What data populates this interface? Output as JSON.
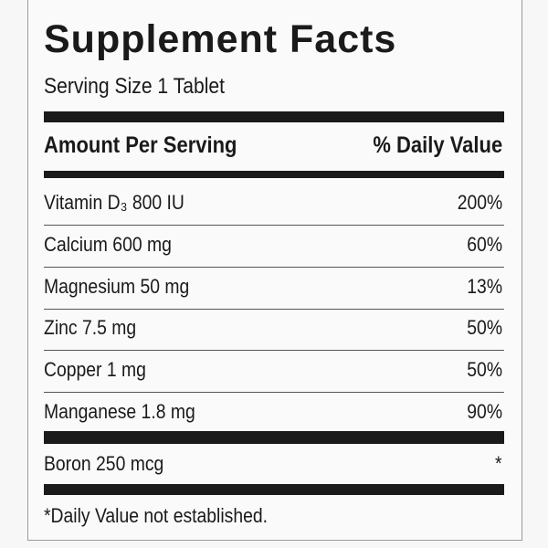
{
  "header": {
    "title": "Supplement Facts",
    "serving_size": "Serving Size 1 Tablet"
  },
  "table": {
    "columns": [
      "Amount Per Serving",
      "% Daily Value"
    ],
    "rows": [
      [
        "Vitamin D₃ 800 IU",
        "200%"
      ],
      [
        "Calcium 600 mg",
        "60%"
      ],
      [
        "Magnesium 50 mg",
        "13%"
      ],
      [
        "Zinc 7.5 mg",
        "50%"
      ],
      [
        "Copper 1 mg",
        "50%"
      ],
      [
        "Manganese 1.8 mg",
        "90%"
      ]
    ],
    "extra_rows": [
      [
        "Boron 250 mcg",
        "*"
      ]
    ]
  },
  "footnote": "*Daily Value not established."
}
